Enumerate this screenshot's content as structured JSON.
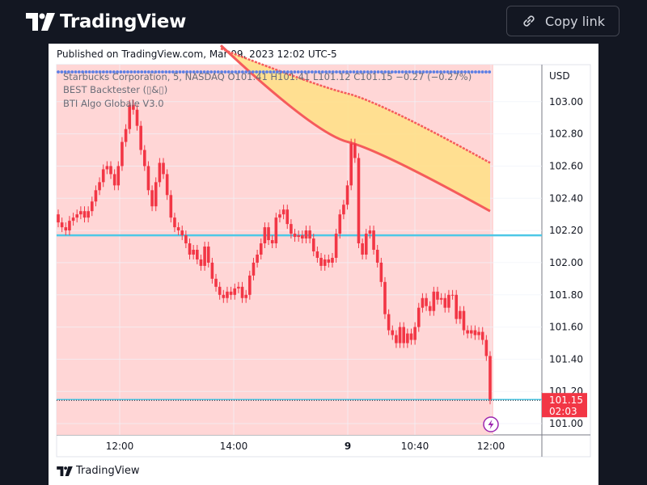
{
  "header": {
    "brand": "TradingView",
    "copy_label": "Copy link"
  },
  "published_text": "Published on TradingView.com, Mar 09, 2023 12:02 UTC-5",
  "footer": {
    "brand": "TradingView"
  },
  "legend": {
    "line1": "Starbucks Corporation, 5, NASDAQ  O101.41  H101.41  L101.12  C101.15  −0.27 (−0.27%)",
    "line2": "BEST Backtester (▯&▯)",
    "line3": "BTI Algo Globale V3.0"
  },
  "colors": {
    "up": "#22ab94",
    "down": "#f23645",
    "bg_zone": "#ffd6d6",
    "band_fill": "#ffe08a",
    "band_line": "#f55b5b",
    "hline": "#4dc8e6",
    "dots": "#5b7ee5"
  },
  "chart_data": {
    "type": "candlestick",
    "symbol": "Starbucks Corporation, 5, NASDAQ",
    "currency": "USD",
    "y_ticks": [
      "103.00",
      "102.80",
      "102.60",
      "102.40",
      "102.20",
      "102.00",
      "101.80",
      "101.60",
      "101.40",
      "101.20",
      "101.00"
    ],
    "x_ticks": [
      "12:00",
      "14:00",
      "9",
      "10:40",
      "12:00"
    ],
    "ylim": [
      100.93,
      103.23
    ],
    "last_price": "101.15",
    "countdown": "02:03",
    "hline_price": 102.17,
    "last_line_price": 101.15,
    "closes": [
      102.25,
      102.22,
      102.2,
      102.26,
      102.28,
      102.3,
      102.32,
      102.28,
      102.32,
      102.38,
      102.45,
      102.5,
      102.58,
      102.6,
      102.55,
      102.48,
      102.6,
      102.75,
      102.83,
      102.98,
      102.95,
      102.85,
      102.7,
      102.6,
      102.45,
      102.35,
      102.5,
      102.62,
      102.55,
      102.42,
      102.28,
      102.22,
      102.2,
      102.17,
      102.12,
      102.05,
      102.08,
      102.02,
      101.98,
      102.1,
      102.0,
      101.9,
      101.85,
      101.8,
      101.78,
      101.82,
      101.8,
      101.84,
      101.85,
      101.78,
      101.8,
      101.92,
      102.0,
      102.05,
      102.12,
      102.22,
      102.14,
      102.12,
      102.28,
      102.3,
      102.33,
      102.24,
      102.18,
      102.16,
      102.17,
      102.15,
      102.2,
      102.15,
      102.07,
      102.03,
      101.98,
      102.02,
      102.0,
      102.03,
      102.18,
      102.3,
      102.36,
      102.48,
      102.74,
      102.65,
      102.12,
      102.05,
      102.18,
      102.2,
      102.08,
      102.0,
      101.88,
      101.68,
      101.58,
      101.55,
      101.5,
      101.6,
      101.5,
      101.56,
      101.52,
      101.6,
      101.72,
      101.78,
      101.73,
      101.7,
      101.82,
      101.77,
      101.78,
      101.72,
      101.8,
      101.8,
      101.65,
      101.7,
      101.58,
      101.56,
      101.58,
      101.55,
      101.57,
      101.52,
      101.42,
      101.15
    ],
    "band_upper": [
      103.33,
      103.05,
      102.62
    ],
    "band_lower": [
      103.35,
      102.75,
      102.32
    ]
  }
}
